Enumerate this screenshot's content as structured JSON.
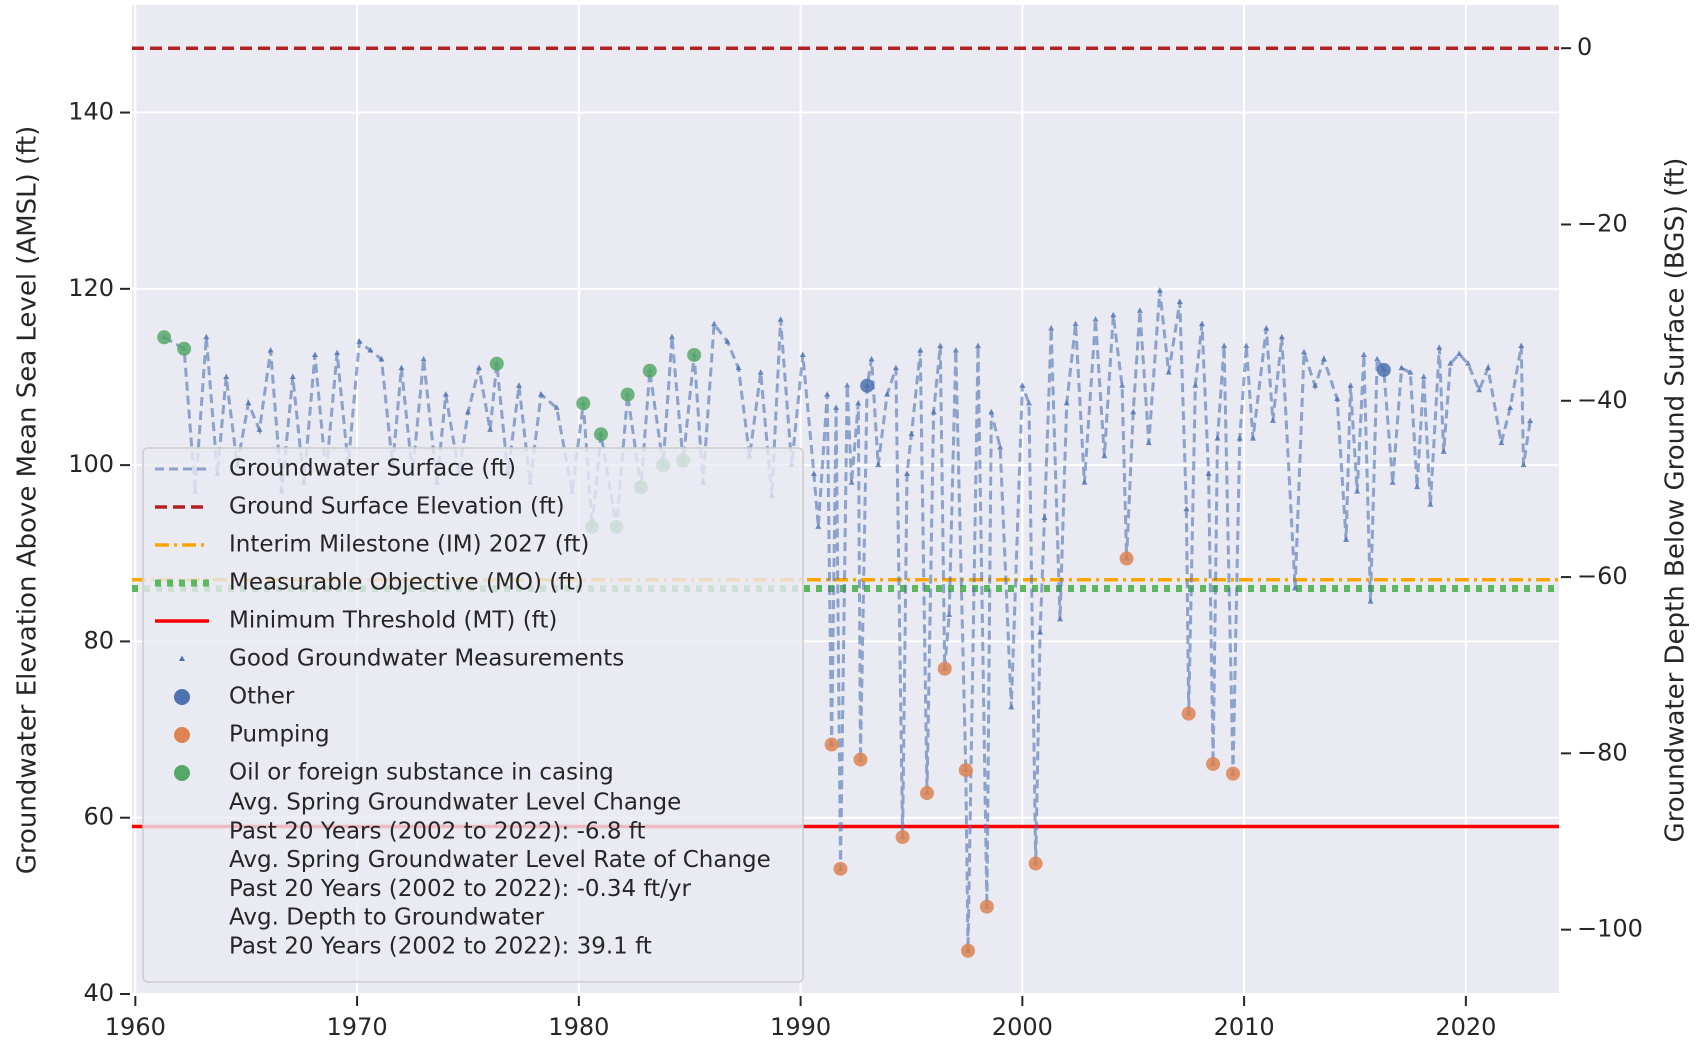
{
  "chart_data": {
    "type": "line",
    "ylabel": "Groundwater Elevation Above Mean Sea Level (AMSL) (ft)",
    "y2label": "Groundwater Depth Below Ground Surface (BGS) (ft)",
    "xlim": [
      1959.85,
      2024.2
    ],
    "xticks": [
      1960,
      1970,
      1980,
      1990,
      2000,
      2010,
      2020
    ],
    "ylim": [
      40,
      152.2
    ],
    "yticks": [
      40,
      60,
      80,
      100,
      120,
      140
    ],
    "y2lim": [
      -107.3,
      4.9
    ],
    "y2ticks": [
      {
        "value": -100,
        "label": "−100"
      },
      {
        "value": -80,
        "label": "−80"
      },
      {
        "value": -60,
        "label": "−60"
      },
      {
        "value": -40,
        "label": "−40"
      },
      {
        "value": -20,
        "label": "−20"
      },
      0
    ],
    "grid": true,
    "legend": "lower left",
    "series": [
      {
        "name": "Groundwater Surface (ft)",
        "marker_name": "Good Groundwater Measurements",
        "color": "#4c72b0",
        "x": [
          1961.3,
          1962.2,
          1962.7,
          1963.2,
          1963.7,
          1964.1,
          1964.6,
          1965.1,
          1965.6,
          1966.1,
          1966.6,
          1967.1,
          1967.6,
          1968.1,
          1968.6,
          1969.1,
          1969.6,
          1970.1,
          1970.6,
          1971.1,
          1971.6,
          1972.0,
          1972.5,
          1973.0,
          1973.6,
          1974.0,
          1974.6,
          1975.0,
          1975.5,
          1976.0,
          1976.3,
          1976.8,
          1977.3,
          1977.8,
          1978.3,
          1979.0,
          1979.7,
          1980.2,
          1980.6,
          1981.0,
          1981.7,
          1982.2,
          1982.8,
          1983.2,
          1983.8,
          1984.2,
          1984.7,
          1985.2,
          1985.6,
          1986.1,
          1986.7,
          1987.2,
          1987.7,
          1988.2,
          1988.7,
          1989.1,
          1989.6,
          1990.1,
          1990.6,
          1990.8,
          1991.2,
          1991.4,
          1991.6,
          1991.8,
          1992.1,
          1992.3,
          1992.6,
          1992.7,
          1993.0,
          1993.2,
          1993.5,
          1993.9,
          1994.3,
          1994.6,
          1994.8,
          1995.0,
          1995.4,
          1995.7,
          1996.0,
          1996.3,
          1996.5,
          1996.7,
          1997.0,
          1997.45,
          1997.55,
          1998.0,
          1998.4,
          1998.6,
          1999.0,
          1999.5,
          2000.0,
          2000.3,
          2000.6,
          2000.8,
          2001.0,
          2001.3,
          2001.7,
          2002.0,
          2002.4,
          2002.8,
          2003.3,
          2003.7,
          2004.1,
          2004.5,
          2004.7,
          2005.0,
          2005.3,
          2005.7,
          2006.2,
          2006.6,
          2007.1,
          2007.4,
          2007.5,
          2007.8,
          2008.1,
          2008.4,
          2008.6,
          2008.8,
          2009.1,
          2009.5,
          2009.8,
          2010.1,
          2010.4,
          2011.0,
          2011.3,
          2011.7,
          2012.3,
          2012.7,
          2013.2,
          2013.6,
          2014.2,
          2014.6,
          2014.8,
          2015.1,
          2015.4,
          2015.7,
          2016.0,
          2016.3,
          2016.7,
          2017.1,
          2017.5,
          2017.8,
          2018.1,
          2018.4,
          2018.8,
          2019.0,
          2019.3,
          2019.7,
          2020.1,
          2020.6,
          2021.0,
          2021.6,
          2022.0,
          2022.5,
          2022.6,
          2022.9
        ],
        "values": [
          114.5,
          113.2,
          97,
          114.5,
          99,
          110,
          100,
          107,
          104,
          113,
          97,
          110,
          98,
          112.5,
          99,
          112.7,
          100,
          114,
          113,
          112,
          100,
          111,
          99,
          112,
          98,
          108,
          99,
          106,
          111,
          104,
          111.5,
          99,
          109,
          98,
          108,
          106.5,
          97,
          107,
          93,
          103.5,
          93,
          108,
          97.5,
          110.7,
          100,
          114.5,
          100.5,
          112.5,
          98,
          116,
          114,
          111,
          101,
          110.5,
          96.5,
          116.5,
          100,
          112.5,
          99,
          93,
          108,
          68.3,
          106.5,
          54.2,
          109,
          98,
          107,
          66.6,
          109,
          112,
          100,
          108,
          111,
          57.8,
          99,
          103.5,
          113,
          62.8,
          106,
          113.5,
          76.9,
          83,
          113,
          65.4,
          44.9,
          113.5,
          49.9,
          106,
          102,
          72.5,
          109,
          107,
          54.8,
          81,
          94,
          115.5,
          82.5,
          107,
          116,
          98,
          116.5,
          101,
          117,
          109,
          89.4,
          106,
          117.5,
          102.5,
          119.8,
          110.5,
          118.5,
          95,
          71.8,
          109,
          116,
          99,
          66.1,
          103,
          113.5,
          65,
          103,
          113.5,
          103,
          115.5,
          105,
          114.5,
          86,
          112.8,
          109,
          112,
          107.5,
          91.5,
          109,
          97,
          112.5,
          84.5,
          112,
          110.8,
          98,
          111,
          110.5,
          97.5,
          110,
          95.5,
          113.3,
          101.5,
          111.5,
          112.6,
          111.5,
          108.5,
          111,
          102.5,
          106.5,
          113.5,
          100,
          105
        ]
      },
      {
        "name": "Other",
        "color": "#4c72b0",
        "x": [
          1993.0,
          2016.3
        ],
        "values": [
          109,
          110.8
        ]
      },
      {
        "name": "Pumping",
        "color": "#dd8452",
        "x": [
          1991.4,
          1991.8,
          1992.7,
          1994.6,
          1995.7,
          1996.5,
          1997.45,
          1997.55,
          1998.4,
          2000.6,
          2004.7,
          2007.5,
          2008.6,
          2009.5
        ],
        "values": [
          68.3,
          54.2,
          66.6,
          57.8,
          62.8,
          76.9,
          65.4,
          44.9,
          49.9,
          54.8,
          89.4,
          71.8,
          66.1,
          65
        ]
      },
      {
        "name": "Oil or foreign substance in casing",
        "color": "#55a868",
        "x": [
          1961.3,
          1962.2,
          1976.3,
          1980.2,
          1980.6,
          1981.0,
          1981.7,
          1982.2,
          1982.8,
          1983.2,
          1983.8,
          1984.7,
          1985.2
        ],
        "values": [
          114.5,
          113.2,
          111.5,
          107,
          93,
          103.5,
          93,
          108,
          97.5,
          110.7,
          100,
          100.5,
          112.5
        ]
      }
    ],
    "reference_lines": [
      {
        "name": "Ground Surface Elevation (ft)",
        "value": 147.3,
        "color": "#b22222",
        "style": "dashed"
      },
      {
        "name": "Interim Milestone (IM) 2027 (ft)",
        "value": 87,
        "color": "#ffa500",
        "style": "dashdot"
      },
      {
        "name": "Measurable Objective (MO) (ft)",
        "value": 86,
        "color": "#5cb85c",
        "style": "dotted"
      },
      {
        "name": "Minimum Threshold (MT) (ft)",
        "value": 59,
        "color": "#ff0000",
        "style": "solid"
      }
    ],
    "annotation_lines": [
      "Avg. Spring Groundwater Level Change",
      "Past 20 Years (2002 to 2022): -6.8 ft",
      "Avg. Spring Groundwater Level Rate of Change",
      "Past 20 Years (2002 to 2022): -0.34 ft/yr",
      "Avg. Depth to Groundwater",
      "Past 20 Years (2002 to 2022): 39.1 ft"
    ]
  }
}
